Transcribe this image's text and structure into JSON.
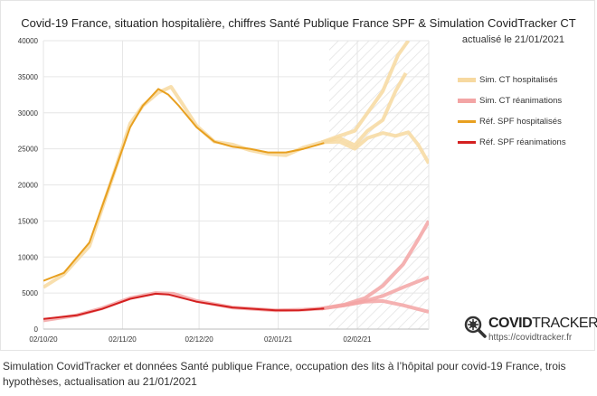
{
  "chart_data": {
    "type": "line",
    "title": "Covid-19 France, situation hospitalière, chiffres Santé Publique France SPF & Simulation CovidTracker CT",
    "subtitle": "actualisé le 21/01/2021",
    "xlabel": "",
    "ylabel": "",
    "ylim": [
      0,
      40000
    ],
    "xlim": [
      "2020-10-02",
      "2021-03-02"
    ],
    "yticks": [
      "0",
      "5000",
      "10000",
      "15000",
      "20000",
      "25000",
      "30000",
      "35000",
      "40000"
    ],
    "xticks": [
      {
        "date": "2020-10-02",
        "label": "02/10/20"
      },
      {
        "date": "2020-11-02",
        "label": "02/11/20"
      },
      {
        "date": "2020-12-02",
        "label": "02/12/20"
      },
      {
        "date": "2021-01-02",
        "label": "02/01/21"
      },
      {
        "date": "2021-02-02",
        "label": "02/02/21"
      }
    ],
    "grid": true,
    "projection_zone_start": "2021-01-22",
    "legend_position": "right",
    "series": [
      {
        "name": "Sim. CT hospitalisés",
        "color": "#f7d9a0",
        "width": 4,
        "lines": [
          [
            [
              "2020-10-02",
              5800
            ],
            [
              "2020-10-10",
              7600
            ],
            [
              "2020-10-20",
              11500
            ],
            [
              "2020-10-30",
              22000
            ],
            [
              "2020-11-05",
              28500
            ],
            [
              "2020-11-10",
              31000
            ],
            [
              "2020-11-16",
              32800
            ],
            [
              "2020-11-21",
              33600
            ],
            [
              "2020-11-25",
              31500
            ],
            [
              "2020-12-01",
              28200
            ],
            [
              "2020-12-08",
              26000
            ],
            [
              "2020-12-15",
              25600
            ],
            [
              "2020-12-22",
              24800
            ],
            [
              "2020-12-29",
              24300
            ],
            [
              "2021-01-05",
              24100
            ],
            [
              "2021-01-12",
              25200
            ],
            [
              "2021-01-19",
              25900
            ],
            [
              "2021-01-26",
              26800
            ],
            [
              "2021-02-01",
              27500
            ],
            [
              "2021-02-06",
              30000
            ],
            [
              "2021-02-12",
              33000
            ],
            [
              "2021-02-18",
              38000
            ],
            [
              "2021-02-22",
              40000
            ]
          ],
          [
            [
              "2021-01-19",
              25900
            ],
            [
              "2021-01-26",
              26500
            ],
            [
              "2021-02-01",
              25500
            ],
            [
              "2021-02-06",
              27500
            ],
            [
              "2021-02-12",
              29000
            ],
            [
              "2021-02-17",
              33000
            ],
            [
              "2021-02-21",
              35500
            ]
          ],
          [
            [
              "2021-01-19",
              25900
            ],
            [
              "2021-01-26",
              26000
            ],
            [
              "2021-02-01",
              25000
            ],
            [
              "2021-02-06",
              26500
            ],
            [
              "2021-02-12",
              27200
            ],
            [
              "2021-02-17",
              26800
            ],
            [
              "2021-02-22",
              27300
            ],
            [
              "2021-02-26",
              25500
            ],
            [
              "2021-03-02",
              23000
            ]
          ]
        ]
      },
      {
        "name": "Sim. CT réanimations",
        "color": "#f3a5a5",
        "width": 4,
        "lines": [
          [
            [
              "2020-10-02",
              1200
            ],
            [
              "2020-10-15",
              1900
            ],
            [
              "2020-10-25",
              2900
            ],
            [
              "2020-11-05",
              4300
            ],
            [
              "2020-11-15",
              5000
            ],
            [
              "2020-11-22",
              4900
            ],
            [
              "2020-12-01",
              3900
            ],
            [
              "2020-12-15",
              3000
            ],
            [
              "2021-01-01",
              2600
            ],
            [
              "2021-01-12",
              2700
            ],
            [
              "2021-01-19",
              2850
            ],
            [
              "2021-01-28",
              3300
            ],
            [
              "2021-02-05",
              3900
            ],
            [
              "2021-02-12",
              4600
            ],
            [
              "2021-02-20",
              5800
            ],
            [
              "2021-03-02",
              7200
            ]
          ],
          [
            [
              "2021-01-19",
              2850
            ],
            [
              "2021-01-28",
              3400
            ],
            [
              "2021-02-05",
              4300
            ],
            [
              "2021-02-12",
              6000
            ],
            [
              "2021-02-20",
              9000
            ],
            [
              "2021-02-26",
              12500
            ],
            [
              "2021-03-02",
              15000
            ]
          ],
          [
            [
              "2021-01-19",
              2850
            ],
            [
              "2021-01-28",
              3300
            ],
            [
              "2021-02-05",
              3800
            ],
            [
              "2021-02-12",
              3900
            ],
            [
              "2021-02-20",
              3300
            ],
            [
              "2021-03-02",
              2400
            ]
          ]
        ]
      },
      {
        "name": "Réf. SPF hospitalisés",
        "color": "#e8a020",
        "width": 2,
        "lines": [
          [
            [
              "2020-10-02",
              6700
            ],
            [
              "2020-10-10",
              7800
            ],
            [
              "2020-10-20",
              12000
            ],
            [
              "2020-10-30",
              22000
            ],
            [
              "2020-11-05",
              28000
            ],
            [
              "2020-11-10",
              31000
            ],
            [
              "2020-11-16",
              33300
            ],
            [
              "2020-11-20",
              32500
            ],
            [
              "2020-11-24",
              31000
            ],
            [
              "2020-12-01",
              28000
            ],
            [
              "2020-12-08",
              26000
            ],
            [
              "2020-12-15",
              25300
            ],
            [
              "2020-12-22",
              25000
            ],
            [
              "2020-12-29",
              24500
            ],
            [
              "2021-01-05",
              24500
            ],
            [
              "2021-01-12",
              25000
            ],
            [
              "2021-01-20",
              25800
            ]
          ]
        ]
      },
      {
        "name": "Réf. SPF réanimations",
        "color": "#d42020",
        "width": 2,
        "lines": [
          [
            [
              "2020-10-02",
              1400
            ],
            [
              "2020-10-15",
              1900
            ],
            [
              "2020-10-25",
              2800
            ],
            [
              "2020-11-05",
              4200
            ],
            [
              "2020-11-15",
              4900
            ],
            [
              "2020-11-20",
              4800
            ],
            [
              "2020-12-01",
              3800
            ],
            [
              "2020-12-15",
              3000
            ],
            [
              "2021-01-01",
              2600
            ],
            [
              "2021-01-10",
              2600
            ],
            [
              "2021-01-20",
              2850
            ]
          ]
        ]
      }
    ]
  },
  "logo": {
    "brand_bold": "COVID",
    "brand_light": "TRACKER",
    "url": "https://covidtracker.fr"
  },
  "caption": "Simulation CovidTracker et données Santé publique France, occupation des lits à l’hôpital pour covid-19 France, trois hypothèses, actualisation au 21/01/2021"
}
